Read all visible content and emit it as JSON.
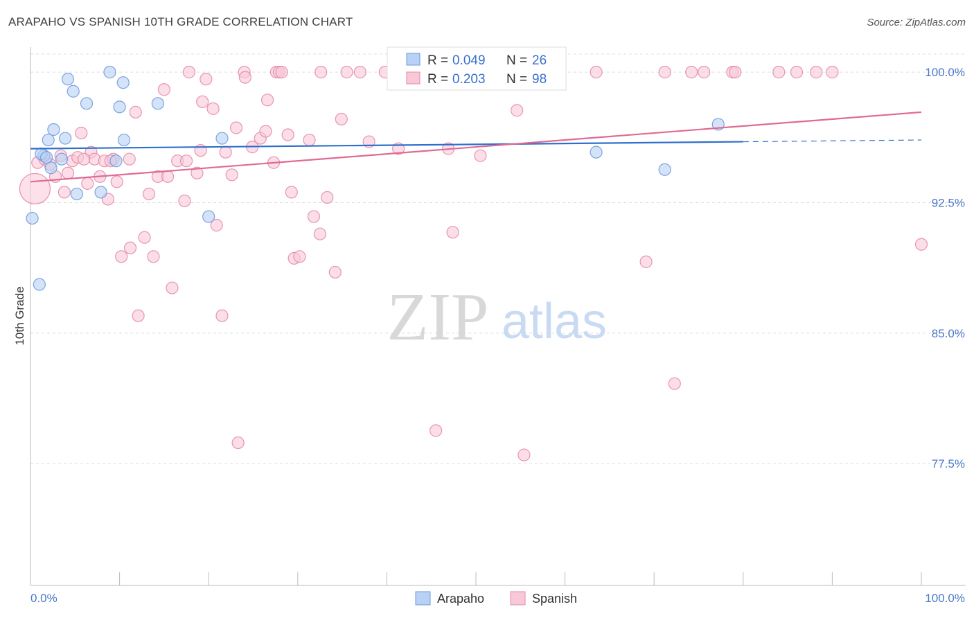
{
  "title": "ARAPAHO VS SPANISH 10TH GRADE CORRELATION CHART",
  "source": "Source: ZipAtlas.com",
  "watermark": {
    "zip": "ZIP",
    "atlas": "atlas"
  },
  "colors": {
    "arapaho_fill": "#b9d1f4",
    "arapaho_stroke": "#6a9be0",
    "arapaho_line": "#2f6fcc",
    "spanish_fill": "#f9c8d8",
    "spanish_stroke": "#e58aaa",
    "spanish_line": "#e06a93",
    "tick_text": "#4a78c8",
    "grid": "#dddddd"
  },
  "legend_box": [
    {
      "series": "Arapaho",
      "r_label": "R =",
      "r_value": "0.049",
      "n_label": "N =",
      "n_value": "26"
    },
    {
      "series": "Spanish",
      "r_label": "R =",
      "r_value": "0.203",
      "n_label": "N =",
      "n_value": "98"
    }
  ],
  "chart_data": {
    "type": "scatter",
    "title": "ARAPAHO VS SPANISH 10TH GRADE CORRELATION CHART",
    "xlabel": "",
    "ylabel": "10th Grade",
    "xlim": [
      0,
      100
    ],
    "ylim": [
      70.5,
      101.0
    ],
    "x_tick_labels": [
      "0.0%",
      "100.0%"
    ],
    "y_ticks": [
      {
        "value": 100.0,
        "label": "100.0%"
      },
      {
        "value": 92.5,
        "label": "92.5%"
      },
      {
        "value": 85.0,
        "label": "85.0%"
      },
      {
        "value": 77.5,
        "label": "77.5%"
      }
    ],
    "legend": [
      "Arapaho",
      "Spanish"
    ],
    "series": [
      {
        "name": "Arapaho",
        "trend": {
          "x": [
            0,
            80
          ],
          "y": [
            95.6,
            96.0
          ],
          "dashed_to": 100,
          "dashed_y": 96.1
        },
        "points": [
          [
            0.2,
            91.6
          ],
          [
            1.0,
            87.8
          ],
          [
            1.5,
            95.2
          ],
          [
            2.0,
            96.1
          ],
          [
            2.3,
            94.5
          ],
          [
            2.6,
            96.7
          ],
          [
            3.5,
            95.0
          ],
          [
            3.9,
            96.2
          ],
          [
            4.2,
            99.6
          ],
          [
            4.8,
            98.9
          ],
          [
            5.2,
            93.0
          ],
          [
            6.3,
            98.2
          ],
          [
            7.9,
            93.1
          ],
          [
            8.9,
            100.0
          ],
          [
            9.6,
            94.9
          ],
          [
            10.0,
            98.0
          ],
          [
            10.4,
            99.4
          ],
          [
            10.5,
            96.1
          ],
          [
            14.3,
            98.2
          ],
          [
            20.0,
            91.7
          ],
          [
            21.5,
            96.2
          ],
          [
            63.5,
            95.4
          ],
          [
            71.2,
            94.4
          ],
          [
            77.2,
            97.0
          ],
          [
            1.2,
            95.3
          ],
          [
            1.8,
            95.1
          ]
        ]
      },
      {
        "name": "Spanish",
        "trend": {
          "x": [
            0,
            100
          ],
          "y": [
            93.7,
            97.7
          ]
        },
        "points": [
          [
            0.5,
            93.3
          ],
          [
            0.8,
            94.8
          ],
          [
            1.6,
            95.0
          ],
          [
            2.2,
            94.7
          ],
          [
            2.8,
            94.0
          ],
          [
            3.4,
            95.2
          ],
          [
            3.8,
            93.1
          ],
          [
            4.2,
            94.2
          ],
          [
            4.7,
            94.9
          ],
          [
            5.3,
            95.1
          ],
          [
            5.7,
            96.5
          ],
          [
            6.4,
            93.6
          ],
          [
            6.8,
            95.4
          ],
          [
            7.2,
            95.0
          ],
          [
            7.8,
            94.0
          ],
          [
            8.3,
            94.9
          ],
          [
            8.7,
            92.7
          ],
          [
            9.3,
            95.0
          ],
          [
            9.7,
            93.7
          ],
          [
            10.2,
            89.4
          ],
          [
            11.1,
            95.0
          ],
          [
            11.2,
            89.9
          ],
          [
            11.8,
            97.7
          ],
          [
            12.1,
            86.0
          ],
          [
            12.8,
            90.5
          ],
          [
            13.3,
            93.0
          ],
          [
            13.8,
            89.4
          ],
          [
            14.3,
            94.0
          ],
          [
            15.0,
            99.0
          ],
          [
            15.4,
            94.0
          ],
          [
            15.9,
            87.6
          ],
          [
            16.5,
            94.9
          ],
          [
            17.3,
            92.6
          ],
          [
            17.5,
            94.9
          ],
          [
            17.8,
            100.0
          ],
          [
            18.7,
            94.2
          ],
          [
            19.1,
            95.5
          ],
          [
            19.3,
            98.3
          ],
          [
            19.7,
            99.6
          ],
          [
            20.5,
            97.9
          ],
          [
            20.9,
            91.2
          ],
          [
            21.5,
            86.0
          ],
          [
            21.9,
            95.4
          ],
          [
            22.6,
            94.1
          ],
          [
            23.1,
            96.8
          ],
          [
            23.3,
            78.7
          ],
          [
            24.0,
            100.0
          ],
          [
            24.1,
            99.7
          ],
          [
            24.9,
            95.7
          ],
          [
            25.8,
            96.2
          ],
          [
            26.4,
            96.6
          ],
          [
            26.6,
            98.4
          ],
          [
            27.3,
            94.8
          ],
          [
            27.6,
            100.0
          ],
          [
            27.9,
            100.0
          ],
          [
            28.2,
            100.0
          ],
          [
            28.9,
            96.4
          ],
          [
            29.3,
            93.1
          ],
          [
            29.6,
            89.3
          ],
          [
            30.2,
            89.4
          ],
          [
            31.3,
            96.1
          ],
          [
            31.8,
            91.7
          ],
          [
            32.6,
            100.0
          ],
          [
            32.5,
            90.7
          ],
          [
            33.3,
            92.8
          ],
          [
            34.2,
            88.5
          ],
          [
            34.9,
            97.3
          ],
          [
            35.5,
            100.0
          ],
          [
            37.0,
            100.0
          ],
          [
            38.0,
            96.0
          ],
          [
            39.8,
            100.0
          ],
          [
            41.3,
            95.6
          ],
          [
            44.6,
            100.0
          ],
          [
            45.5,
            79.4
          ],
          [
            46.9,
            95.6
          ],
          [
            47.4,
            90.8
          ],
          [
            49.1,
            100.0
          ],
          [
            50.5,
            95.2
          ],
          [
            52.5,
            100.0
          ],
          [
            54.6,
            97.8
          ],
          [
            55.0,
            100.0
          ],
          [
            55.4,
            78.0
          ],
          [
            59.2,
            100.0
          ],
          [
            63.5,
            100.0
          ],
          [
            69.1,
            89.1
          ],
          [
            71.2,
            100.0
          ],
          [
            72.3,
            82.1
          ],
          [
            74.2,
            100.0
          ],
          [
            75.6,
            100.0
          ],
          [
            78.8,
            100.0
          ],
          [
            79.1,
            100.0
          ],
          [
            84.0,
            100.0
          ],
          [
            86.0,
            100.0
          ],
          [
            88.2,
            100.0
          ],
          [
            90.0,
            100.0
          ],
          [
            100.0,
            90.1
          ],
          [
            6.0,
            95.0
          ],
          [
            9.0,
            94.9
          ]
        ]
      }
    ]
  }
}
